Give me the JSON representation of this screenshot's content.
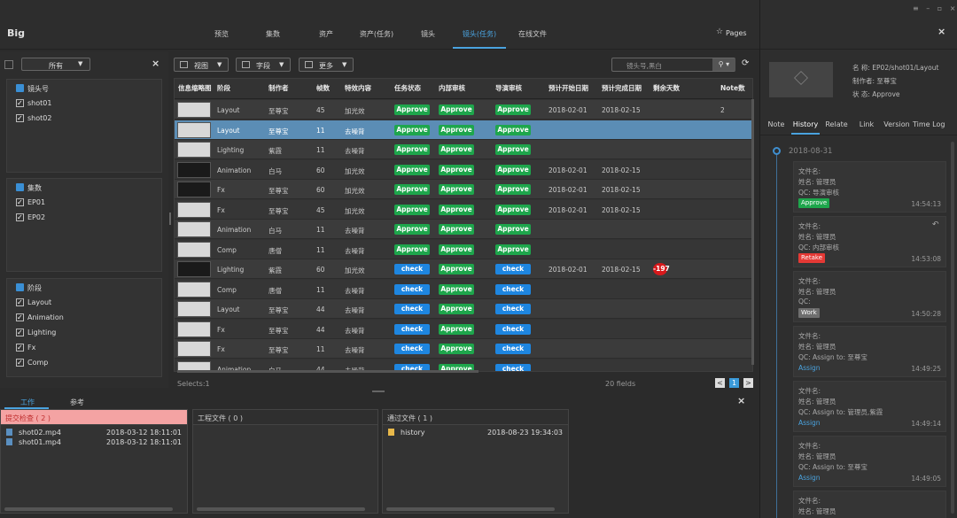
{
  "app": {
    "logo": "Big",
    "pages": "Pages",
    "nav": [
      {
        "label": "预览"
      },
      {
        "label": "集数"
      },
      {
        "label": "资产"
      },
      {
        "label": "资产(任务)"
      },
      {
        "label": "镜头"
      },
      {
        "label": "镜头(任务)",
        "active": true
      },
      {
        "label": "在线文件"
      }
    ]
  },
  "filter": {
    "dropdown": "所有",
    "groups": [
      {
        "title": "镜头号",
        "items": [
          "shot01",
          "shot02"
        ]
      },
      {
        "title": "集数",
        "items": [
          "EP01",
          "EP02"
        ]
      },
      {
        "title": "阶段",
        "items": [
          "Layout",
          "Animation",
          "Lighting",
          "Fx",
          "Comp"
        ]
      }
    ]
  },
  "toolbar": {
    "buttons": [
      "视图",
      "字段",
      "更多"
    ],
    "search": "镜头号,黑白"
  },
  "table": {
    "columns": [
      "信息缩略图",
      "阶段",
      "制作者",
      "帧数",
      "特效内容",
      "任务状态",
      "内部审核",
      "导演审核",
      "预计开始日期",
      "预计完成日期",
      "剩余天数",
      "Note数"
    ],
    "rows": [
      {
        "cells": [
          "Layout",
          "至尊宝",
          "45",
          "加光效",
          "Approve",
          "Approve",
          "Approve",
          "2018-02-01",
          "2018-02-15",
          "",
          "2"
        ]
      },
      {
        "cells": [
          "Layout",
          "至尊宝",
          "11",
          "去噪背",
          "Approve",
          "Approve",
          "Approve",
          "",
          "",
          "",
          ""
        ],
        "selected": true
      },
      {
        "cells": [
          "Lighting",
          "紫霞",
          "11",
          "去噪背",
          "Approve",
          "Approve",
          "Approve",
          "",
          "",
          "",
          ""
        ]
      },
      {
        "cells": [
          "Animation",
          "白马",
          "60",
          "加光效",
          "Approve",
          "Approve",
          "Approve",
          "2018-02-01",
          "2018-02-15",
          "",
          ""
        ]
      },
      {
        "cells": [
          "Fx",
          "至尊宝",
          "60",
          "加光效",
          "Approve",
          "Approve",
          "Approve",
          "2018-02-01",
          "2018-02-15",
          "",
          ""
        ]
      },
      {
        "cells": [
          "Fx",
          "至尊宝",
          "45",
          "加光效",
          "Approve",
          "Approve",
          "Approve",
          "2018-02-01",
          "2018-02-15",
          "",
          ""
        ]
      },
      {
        "cells": [
          "Animation",
          "白马",
          "11",
          "去噪背",
          "Approve",
          "Approve",
          "Approve",
          "",
          "",
          "",
          ""
        ]
      },
      {
        "cells": [
          "Comp",
          "唐僧",
          "11",
          "去噪背",
          "Approve",
          "Approve",
          "Approve",
          "",
          "",
          "",
          ""
        ]
      },
      {
        "cells": [
          "Lighting",
          "紫霞",
          "60",
          "加光效",
          "check",
          "Approve",
          "check",
          "2018-02-01",
          "2018-02-15",
          "-197",
          ""
        ]
      },
      {
        "cells": [
          "Comp",
          "唐僧",
          "11",
          "去噪背",
          "check",
          "Approve",
          "check",
          "",
          "",
          "",
          ""
        ]
      },
      {
        "cells": [
          "Layout",
          "至尊宝",
          "44",
          "去噪背",
          "check",
          "Approve",
          "check",
          "",
          "",
          "",
          ""
        ]
      },
      {
        "cells": [
          "Fx",
          "至尊宝",
          "44",
          "去噪背",
          "check",
          "Approve",
          "check",
          "",
          "",
          "",
          ""
        ]
      },
      {
        "cells": [
          "Fx",
          "至尊宝",
          "11",
          "去噪背",
          "check",
          "Approve",
          "check",
          "",
          "",
          "",
          ""
        ]
      },
      {
        "cells": [
          "Animation",
          "白马",
          "44",
          "去噪背",
          "check",
          "Approve",
          "check",
          "",
          "",
          "",
          ""
        ]
      }
    ],
    "selects": "Selects:1",
    "fields": "20 fields",
    "page": "1"
  },
  "bottom": {
    "tabs": [
      {
        "label": "工作",
        "active": true
      },
      {
        "label": "参考"
      }
    ],
    "panels": [
      {
        "title": "提交检查 ( 2 )",
        "files": [
          {
            "name": "shot02.mp4",
            "date": "2018-03-12 18:11:01"
          },
          {
            "name": "shot01.mp4",
            "date": "2018-03-12 18:11:01"
          }
        ]
      },
      {
        "title": "工程文件 ( 0 )",
        "files": []
      },
      {
        "title": "通过文件 ( 1 )",
        "files": [
          {
            "name": "history",
            "date": "2018-08-23 19:34:03"
          }
        ]
      }
    ]
  },
  "detail": {
    "info": [
      "名    称: EP02/shot01/Layout",
      "制作者: 至尊宝",
      "状    态: Approve"
    ],
    "tabs": [
      {
        "label": "Note"
      },
      {
        "label": "History",
        "active": true
      },
      {
        "label": "Relate"
      },
      {
        "label": "Link"
      },
      {
        "label": "Version"
      },
      {
        "label": "Time Log"
      }
    ],
    "date": "2018-08-31",
    "entries": [
      {
        "lines": [
          "文件名:",
          "姓名: 管理员",
          "QC: 导演审核"
        ],
        "badge": "Approve",
        "time": "14:54:13"
      },
      {
        "lines": [
          "文件名:",
          "姓名: 管理员",
          "QC: 内部审核"
        ],
        "badge": "Retake",
        "time": "14:53:08"
      },
      {
        "lines": [
          "文件名:",
          "姓名: 管理员",
          "QC:"
        ],
        "badge": "Work",
        "time": "14:50:28"
      },
      {
        "lines": [
          "文件名:",
          "姓名: 管理员",
          "QC: Assign to: 至尊宝"
        ],
        "badge": "Assign",
        "time": "14:49:25"
      },
      {
        "lines": [
          "文件名:",
          "姓名: 管理员",
          "QC: Assign to: 管理员,紫霞"
        ],
        "badge": "Assign",
        "time": "14:49:14"
      },
      {
        "lines": [
          "文件名:",
          "姓名: 管理员",
          "QC: Assign to: 至尊宝"
        ],
        "badge": "Assign",
        "time": "14:49:05"
      },
      {
        "lines": [
          "文件名:",
          "姓名: 管理员"
        ]
      }
    ]
  }
}
